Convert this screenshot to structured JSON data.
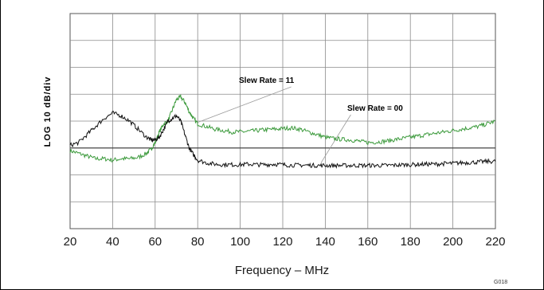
{
  "chart_data": {
    "type": "line",
    "xlabel": "Frequency – MHz",
    "ylabel": "LOG 10 dB/div",
    "x_ticks": [
      "20",
      "40",
      "60",
      "80",
      "100",
      "120",
      "140",
      "160",
      "180",
      "200",
      "220"
    ],
    "xlim": [
      20,
      220
    ],
    "ylim": [
      0,
      8
    ],
    "y_divisions": 8,
    "grid": true,
    "figure_code": "G018",
    "annotations": [
      "Slew Rate = 11",
      "Slew Rate = 00"
    ],
    "series": [
      {
        "name": "Slew Rate = 11",
        "color": "#3c9a3c",
        "x": [
          20,
          24,
          28,
          32,
          36,
          40,
          44,
          48,
          52,
          56,
          58,
          60,
          62,
          64,
          66,
          68,
          70,
          72,
          74,
          76,
          78,
          80,
          84,
          88,
          92,
          96,
          100,
          104,
          108,
          112,
          116,
          120,
          124,
          128,
          132,
          136,
          140,
          144,
          148,
          152,
          156,
          160,
          164,
          168,
          172,
          176,
          180,
          184,
          188,
          192,
          196,
          200,
          204,
          208,
          212,
          216,
          220
        ],
        "y": [
          2.9,
          2.8,
          2.7,
          2.6,
          2.6,
          2.55,
          2.6,
          2.6,
          2.65,
          2.8,
          2.95,
          3.2,
          3.6,
          3.9,
          4.0,
          4.4,
          4.8,
          4.9,
          4.7,
          4.35,
          4.1,
          3.9,
          3.8,
          3.7,
          3.65,
          3.6,
          3.6,
          3.62,
          3.65,
          3.68,
          3.7,
          3.72,
          3.75,
          3.7,
          3.6,
          3.5,
          3.4,
          3.35,
          3.32,
          3.3,
          3.25,
          3.2,
          3.22,
          3.25,
          3.3,
          3.35,
          3.4,
          3.45,
          3.5,
          3.55,
          3.6,
          3.65,
          3.7,
          3.75,
          3.8,
          3.9,
          4.0
        ]
      },
      {
        "name": "Slew Rate = 00",
        "color": "#111111",
        "x": [
          20,
          24,
          28,
          32,
          36,
          40,
          44,
          48,
          52,
          56,
          58,
          60,
          62,
          64,
          66,
          68,
          70,
          72,
          74,
          76,
          78,
          80,
          84,
          88,
          92,
          96,
          100,
          104,
          108,
          112,
          116,
          120,
          124,
          128,
          132,
          136,
          140,
          144,
          148,
          152,
          156,
          160,
          164,
          168,
          172,
          176,
          180,
          184,
          188,
          192,
          196,
          200,
          204,
          208,
          212,
          216,
          220
        ],
        "y": [
          3.1,
          3.2,
          3.5,
          3.8,
          4.1,
          4.3,
          4.2,
          4.0,
          3.7,
          3.4,
          3.3,
          3.3,
          3.4,
          3.7,
          4.0,
          4.1,
          4.2,
          4.0,
          3.5,
          3.0,
          2.75,
          2.55,
          2.45,
          2.4,
          2.38,
          2.38,
          2.38,
          2.4,
          2.38,
          2.38,
          2.4,
          2.38,
          2.36,
          2.36,
          2.36,
          2.35,
          2.35,
          2.35,
          2.35,
          2.35,
          2.35,
          2.35,
          2.35,
          2.35,
          2.36,
          2.37,
          2.38,
          2.39,
          2.4,
          2.4,
          2.42,
          2.43,
          2.45,
          2.46,
          2.48,
          2.5,
          2.5
        ]
      }
    ]
  }
}
